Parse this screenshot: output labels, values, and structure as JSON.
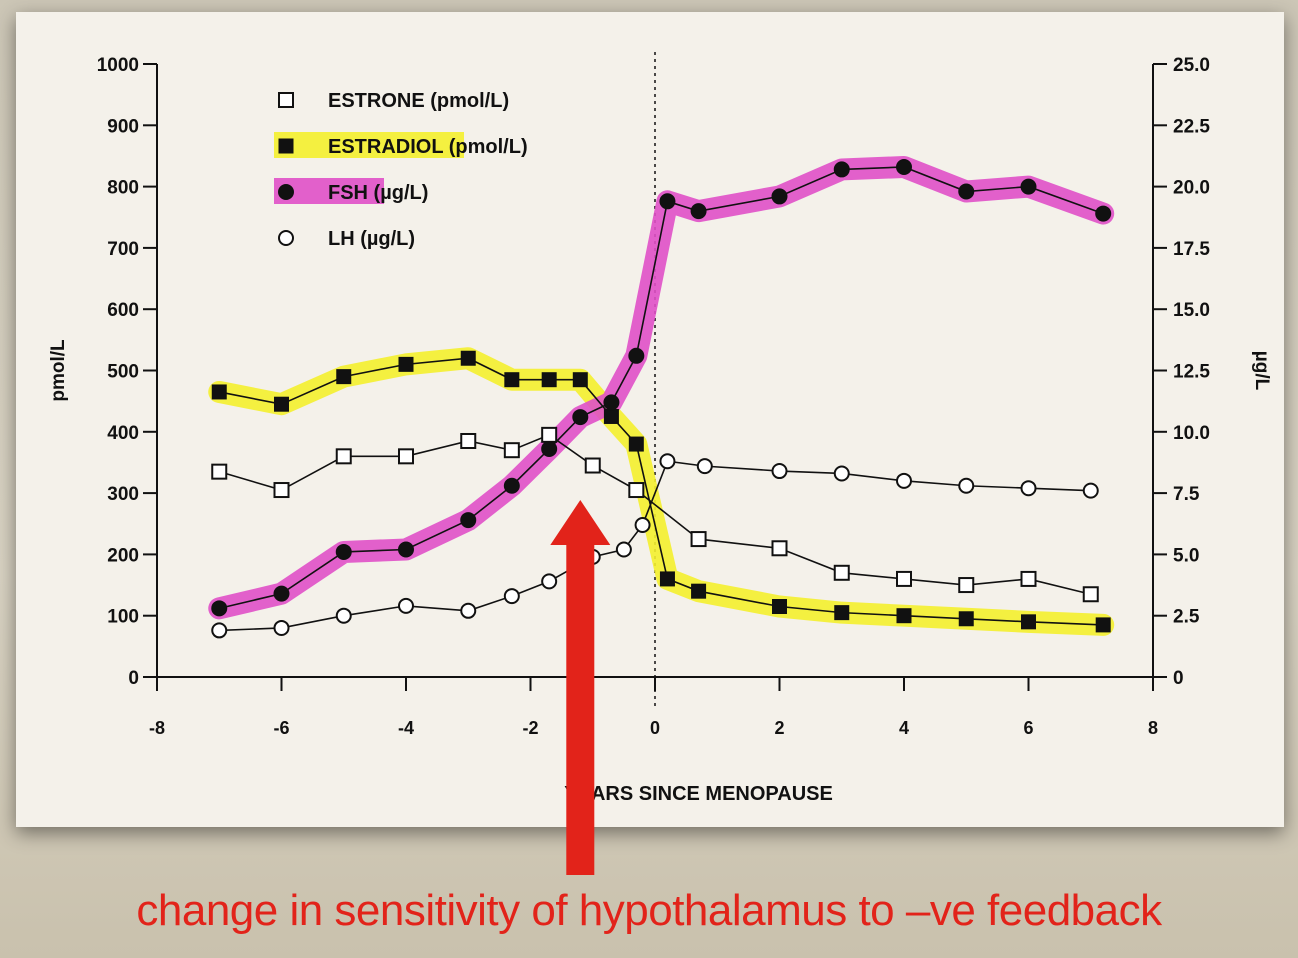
{
  "chart_data": {
    "type": "line",
    "title": "",
    "xlabel": "YEARS SINCE MENOPAUSE",
    "ylabel_left": "pmol/L",
    "ylabel_right": "µg/L",
    "xlim": [
      -8,
      8
    ],
    "ylim_left": [
      0,
      1000
    ],
    "ylim_right": [
      0,
      25
    ],
    "x_ticks": [
      "-8",
      "-6",
      "-4",
      "-2",
      "0",
      "2",
      "4",
      "6",
      "8"
    ],
    "y_left_ticks": [
      "0",
      "100",
      "200",
      "300",
      "400",
      "500",
      "600",
      "700",
      "800",
      "900",
      "1000"
    ],
    "y_right_ticks": [
      "0",
      "2.5",
      "5.0",
      "7.5",
      "10.0",
      "12.5",
      "15.0",
      "17.5",
      "20.0",
      "22.5",
      "25.0"
    ],
    "series": [
      {
        "name": "ESTRONE",
        "legend": "ESTRONE  (pmol/L)",
        "axis": "left",
        "marker": "open-square",
        "highlight": "",
        "x": [
          -7,
          -6,
          -5,
          -4,
          -3,
          -2.3,
          -1.7,
          -1,
          -0.3,
          0.7,
          2,
          3,
          4,
          5,
          6,
          7
        ],
        "y": [
          335,
          305,
          360,
          360,
          385,
          370,
          395,
          345,
          305,
          225,
          210,
          170,
          160,
          150,
          160,
          135
        ]
      },
      {
        "name": "ESTRADIOL",
        "legend": "ESTRADIOL  (pmol/L)",
        "axis": "left",
        "marker": "filled-square",
        "highlight": "#f4f02e",
        "x": [
          -7,
          -6,
          -5,
          -4,
          -3,
          -2.3,
          -1.7,
          -1.2,
          -0.7,
          -0.3,
          0.2,
          0.7,
          2,
          3,
          4,
          5,
          6,
          7.2
        ],
        "y": [
          465,
          445,
          490,
          510,
          520,
          485,
          485,
          485,
          425,
          380,
          160,
          140,
          115,
          105,
          100,
          95,
          90,
          85
        ]
      },
      {
        "name": "FSH",
        "legend": "FSH  (µg/L)",
        "axis": "right",
        "marker": "filled-circle",
        "highlight": "#e050c8",
        "x": [
          -7,
          -6,
          -5,
          -4,
          -3,
          -2.3,
          -1.7,
          -1.2,
          -0.7,
          -0.3,
          0.2,
          0.7,
          2,
          3,
          4,
          5,
          6,
          7.2
        ],
        "y": [
          2.8,
          3.4,
          5.1,
          5.2,
          6.4,
          7.8,
          9.3,
          10.6,
          11.2,
          13.1,
          19.4,
          19.0,
          19.6,
          20.7,
          20.8,
          19.8,
          20.0,
          18.9
        ]
      },
      {
        "name": "LH",
        "legend": "LH  (µg/L)",
        "axis": "right",
        "marker": "open-circle",
        "highlight": "",
        "x": [
          -7,
          -6,
          -5,
          -4,
          -3,
          -2.3,
          -1.7,
          -1,
          -0.5,
          -0.2,
          0.2,
          0.8,
          2,
          3,
          4,
          5,
          6,
          7
        ],
        "y": [
          1.9,
          2.0,
          2.5,
          2.9,
          2.7,
          3.3,
          3.9,
          4.9,
          5.2,
          6.2,
          8.8,
          8.6,
          8.4,
          8.3,
          8.0,
          7.8,
          7.7,
          7.6
        ]
      }
    ]
  },
  "annotation": {
    "caption": "change in sensitivity of hypothalamus to –ve feedback",
    "arrow_color": "#e2231a"
  }
}
